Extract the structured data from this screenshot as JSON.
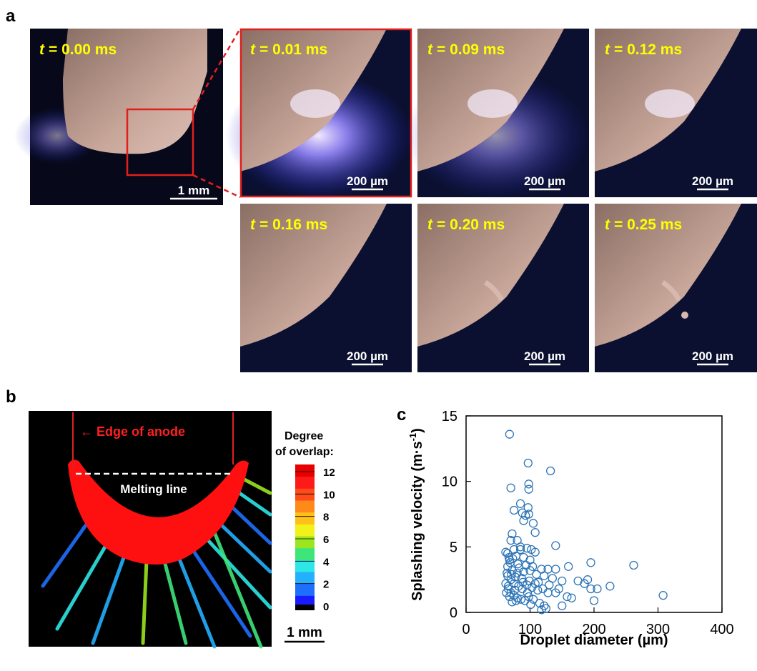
{
  "panel_labels": [
    "a",
    "b",
    "c"
  ],
  "panel_a": {
    "variable": "t",
    "overview": {
      "time": "= 0.00 ms",
      "scale": "1 mm"
    },
    "frames": [
      {
        "time": "= 0.01 ms",
        "scale": "200 µm"
      },
      {
        "time": "= 0.09 ms",
        "scale": "200 µm"
      },
      {
        "time": "= 0.12 ms",
        "scale": "200 µm"
      },
      {
        "time": "= 0.16 ms",
        "scale": "200 µm"
      },
      {
        "time": "= 0.20 ms",
        "scale": "200 µm"
      },
      {
        "time": "= 0.25 ms",
        "scale": "200 µm"
      }
    ]
  },
  "panel_b": {
    "edge_label": "Edge of anode",
    "melting_label": "Melting line",
    "scale": "1 mm",
    "colorbar": {
      "title": [
        "Degree",
        "of overlap:"
      ],
      "ticks": [
        12,
        10,
        8,
        6,
        4,
        2,
        0
      ],
      "colors": [
        "#1a1aff",
        "#1f6fff",
        "#23b0ff",
        "#2ee6e6",
        "#3ee67a",
        "#9be61e",
        "#f2f21a",
        "#ffc01a",
        "#ff8a1a",
        "#ff4a1a",
        "#ff1a1a",
        "#e60000"
      ]
    }
  },
  "chart_data": {
    "type": "scatter",
    "xlabel": "Droplet diameter (µm)",
    "ylabel": {
      "text": "Splashing velocity (m·s",
      "sup": "-1",
      "end": ")"
    },
    "xlim": [
      0,
      400
    ],
    "ylim": [
      0,
      15
    ],
    "xticks": [
      0,
      100,
      200,
      300,
      400
    ],
    "yticks": [
      0,
      5,
      10,
      15
    ],
    "color": "#2e75b6",
    "series": [
      {
        "x": [
          68,
          132,
          97,
          70,
          98,
          98,
          85,
          97,
          75,
          88,
          93,
          98,
          90,
          105,
          72,
          108,
          80,
          70,
          85,
          62,
          65,
          75,
          85,
          95,
          102,
          108,
          140,
          78,
          68,
          90,
          100,
          118,
          128,
          140,
          160,
          195,
          262,
          65,
          72,
          80,
          90,
          100,
          110,
          122,
          135,
          150,
          175,
          185,
          190,
          225,
          195,
          205,
          65,
          70,
          75,
          82,
          88,
          95,
          103,
          112,
          120,
          128,
          140,
          158,
          165,
          308,
          200,
          62,
          66,
          70,
          75,
          80,
          86,
          92,
          98,
          105,
          115,
          122,
          125,
          118,
          68,
          72,
          78,
          64,
          66,
          69,
          73,
          77,
          83,
          87,
          94,
          99,
          104,
          113,
          130,
          145,
          150,
          63,
          67,
          71,
          76,
          81,
          89,
          96,
          101,
          108
        ],
        "values": [
          13.6,
          10.8,
          11.4,
          9.5,
          9.8,
          9.4,
          8.3,
          8,
          7.8,
          7.6,
          7.4,
          7.5,
          7,
          6.8,
          6,
          6.1,
          5.5,
          5.5,
          5,
          4.6,
          4.5,
          4.8,
          4.8,
          4.9,
          4.8,
          4.6,
          5.1,
          4.3,
          4,
          4.2,
          4,
          3.3,
          3.3,
          3.3,
          3.5,
          3.8,
          3.6,
          3.5,
          3.2,
          3,
          3.1,
          3.2,
          2.9,
          2.8,
          2.6,
          2.4,
          2.4,
          2.2,
          2.5,
          2,
          1.8,
          1.8,
          2.8,
          2.5,
          2.2,
          2,
          1.8,
          2.1,
          1.9,
          1.7,
          1.8,
          1.5,
          1.5,
          1.2,
          1.1,
          1.3,
          0.9,
          2.2,
          1.8,
          1.5,
          1.3,
          1.1,
          1,
          0.9,
          1.2,
          1,
          0.7,
          0.5,
          0.3,
          0.2,
          1.2,
          0.8,
          0.9,
          3,
          2,
          3.8,
          4.1,
          2.7,
          3.4,
          2.6,
          3.6,
          2.4,
          3.5,
          2.3,
          2.1,
          1.8,
          0.5,
          1.5,
          4.2,
          2.9,
          1.7,
          3.7,
          2.3,
          1.5,
          0.6,
          2.2
        ]
      }
    ]
  }
}
